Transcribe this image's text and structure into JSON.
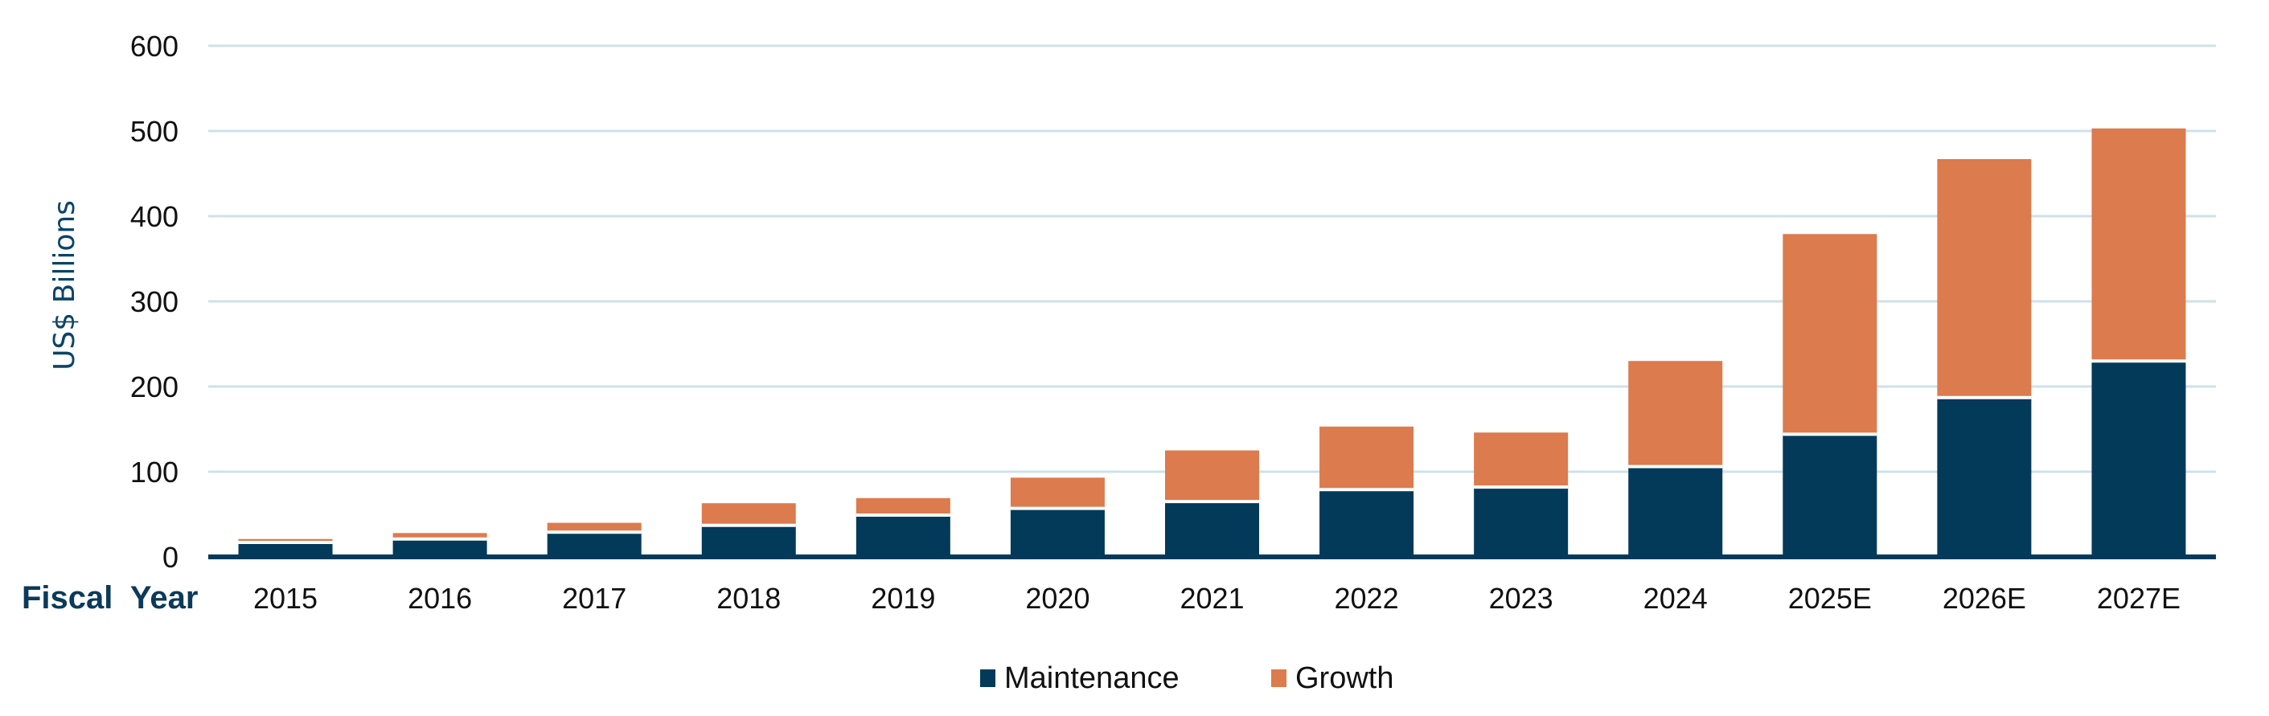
{
  "chart_data": {
    "type": "bar",
    "stacked": true,
    "ylabel": "US$ Billions",
    "xlabel": "Fiscal  Year",
    "ylim": [
      0,
      600
    ],
    "yticks": [
      0,
      100,
      200,
      300,
      400,
      500,
      600
    ],
    "grid": true,
    "legend_placement": "bottom",
    "categories": [
      "2015",
      "2016",
      "2017",
      "2018",
      "2019",
      "2020",
      "2021",
      "2022",
      "2023",
      "2024",
      "2025E",
      "2026E",
      "2027E"
    ],
    "series": [
      {
        "name": "Maintenance",
        "color": "#033a59",
        "values": [
          17,
          21,
          29,
          37,
          49,
          57,
          65,
          79,
          82,
          106,
          144,
          187,
          230
        ]
      },
      {
        "name": "Growth",
        "color": "#dc7b4d",
        "values": [
          4,
          7,
          11,
          26,
          20,
          36,
          60,
          74,
          64,
          124,
          235,
          280,
          273
        ]
      }
    ],
    "colors": {
      "grid": "#cfe1ea",
      "axis": "#033a59"
    }
  }
}
